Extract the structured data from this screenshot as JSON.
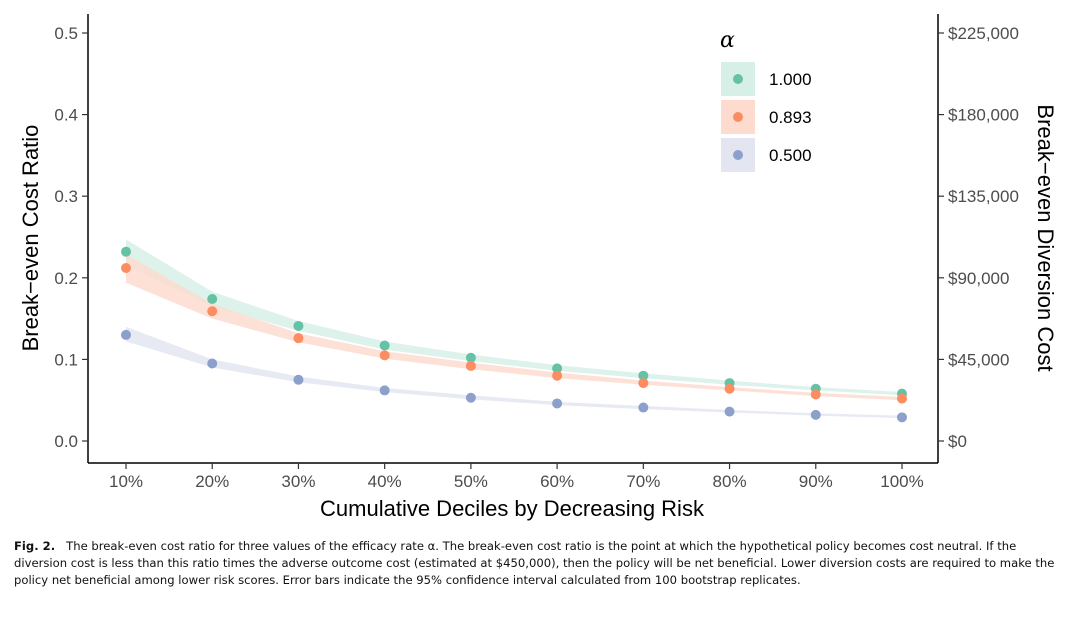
{
  "chart_data": {
    "type": "scatter",
    "x_label": "Cumulative Deciles by Decreasing Risk",
    "y_label": "Break−even Cost Ratio",
    "y2_label": "Break−even Diversion Cost",
    "categories": [
      "10%",
      "20%",
      "30%",
      "40%",
      "50%",
      "60%",
      "70%",
      "80%",
      "90%",
      "100%"
    ],
    "ylim": [
      0,
      0.5
    ],
    "y_ticks": [
      0.0,
      0.1,
      0.2,
      0.3,
      0.4,
      0.5
    ],
    "y_tick_labels": [
      "0.0",
      "0.1",
      "0.2",
      "0.3",
      "0.4",
      "0.5"
    ],
    "y2_ticks": [
      0,
      45000,
      90000,
      135000,
      180000,
      225000
    ],
    "y2_tick_labels": [
      "$0",
      "$45,000",
      "$90,000",
      "$135,000",
      "$180,000",
      "$225,000"
    ],
    "y2_per_y": 450000,
    "grid": false,
    "legend": {
      "title": "α",
      "placement": "top-right"
    },
    "series": [
      {
        "name": "1.000",
        "color": "#66c2a5",
        "band_color": "#d7f0e7",
        "values": [
          0.232,
          0.174,
          0.141,
          0.117,
          0.102,
          0.089,
          0.08,
          0.071,
          0.064,
          0.058
        ],
        "lower": [
          0.215,
          0.165,
          0.135,
          0.112,
          0.098,
          0.086,
          0.077,
          0.069,
          0.062,
          0.056
        ],
        "upper": [
          0.247,
          0.183,
          0.147,
          0.122,
          0.106,
          0.093,
          0.083,
          0.074,
          0.066,
          0.06
        ]
      },
      {
        "name": "0.893",
        "color": "#fc8d62",
        "band_color": "#fddccf",
        "values": [
          0.212,
          0.159,
          0.126,
          0.105,
          0.092,
          0.08,
          0.071,
          0.064,
          0.057,
          0.052
        ],
        "lower": [
          0.194,
          0.15,
          0.121,
          0.101,
          0.088,
          0.077,
          0.069,
          0.062,
          0.055,
          0.05
        ],
        "upper": [
          0.229,
          0.168,
          0.132,
          0.11,
          0.096,
          0.084,
          0.074,
          0.066,
          0.059,
          0.054
        ]
      },
      {
        "name": "0.500",
        "color": "#8da0cb",
        "band_color": "#e3e6f1",
        "values": [
          0.13,
          0.095,
          0.075,
          0.062,
          0.053,
          0.046,
          0.041,
          0.036,
          0.032,
          0.029
        ],
        "lower": [
          0.122,
          0.09,
          0.072,
          0.06,
          0.051,
          0.044,
          0.039,
          0.035,
          0.031,
          0.028
        ],
        "upper": [
          0.14,
          0.1,
          0.079,
          0.065,
          0.056,
          0.048,
          0.043,
          0.038,
          0.034,
          0.031
        ]
      }
    ]
  },
  "caption": {
    "label": "Fig. 2.",
    "text": "The break-even cost ratio for three values of the efficacy rate α. The break-even cost ratio is the point at which the hypothetical policy becomes cost neutral. If the diversion cost is less than this ratio times the adverse outcome cost (estimated at $450,000), then the policy will be net beneficial. Lower diversion costs are required to make the policy net beneficial among lower risk scores. Error bars indicate the 95% confidence interval calculated from 100 bootstrap replicates."
  }
}
